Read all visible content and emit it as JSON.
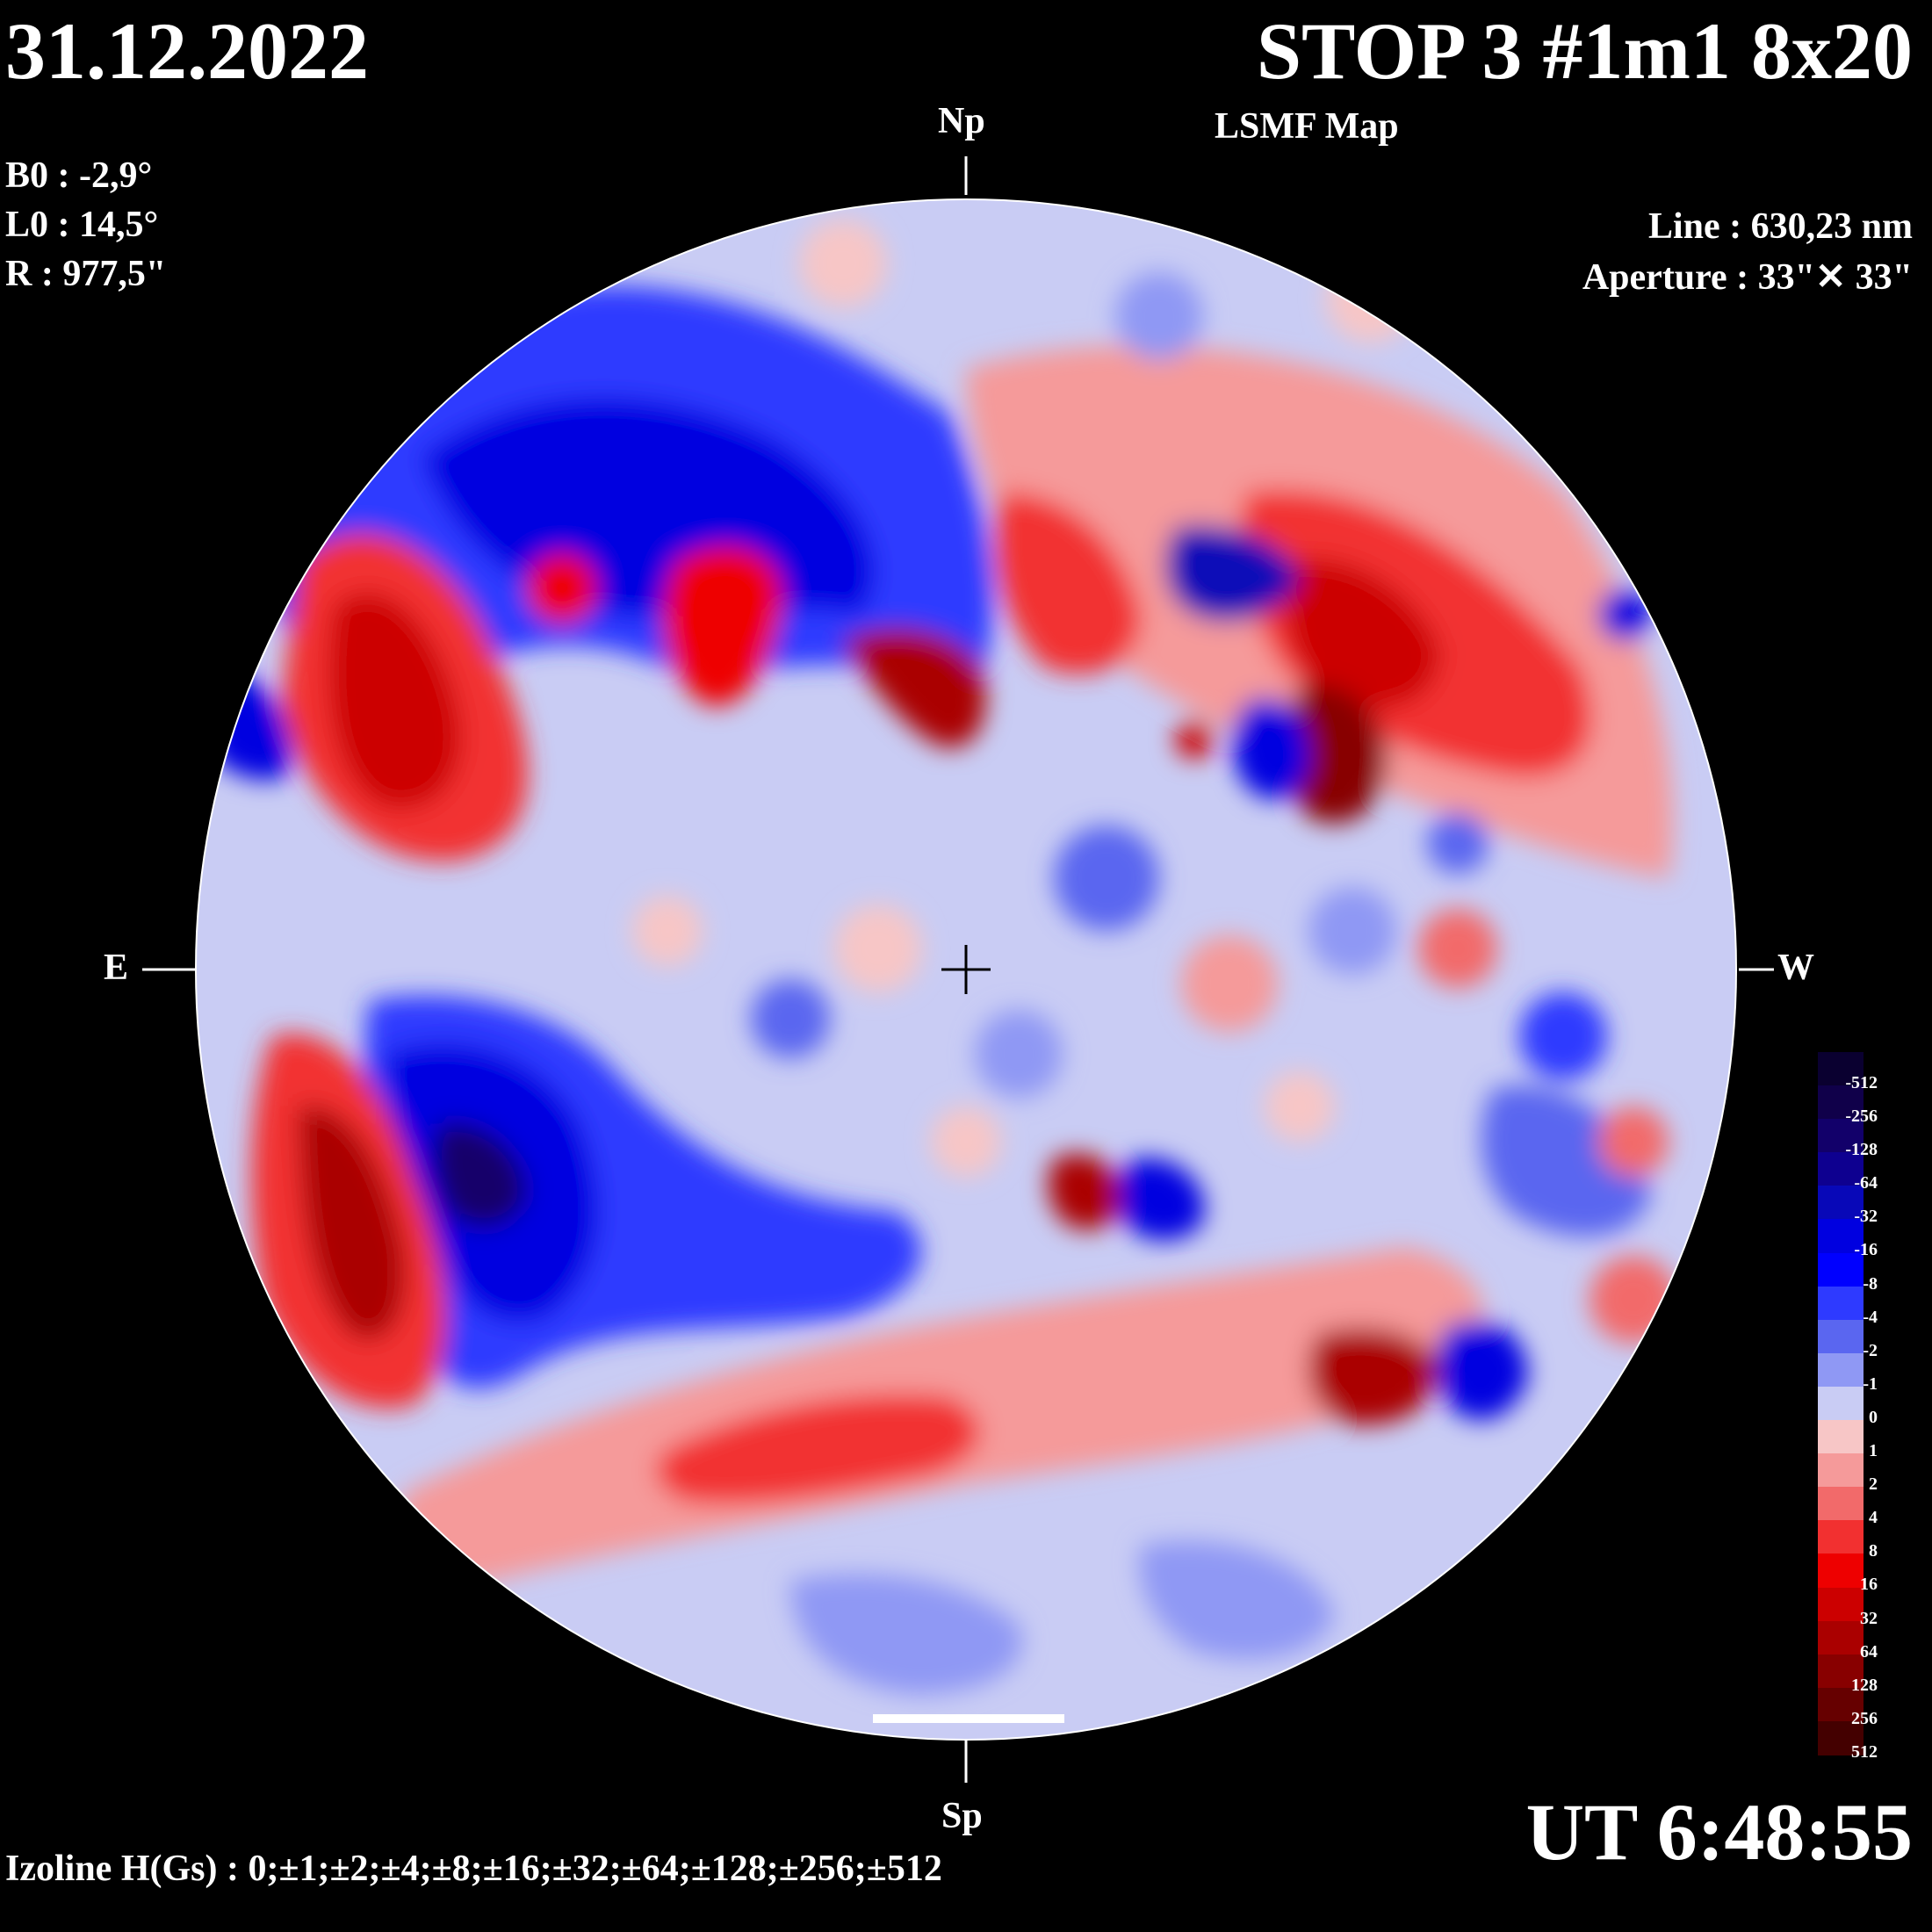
{
  "header": {
    "date": "31.12.2022",
    "title": "STOP 3 #1m1 8x20",
    "map_type": "LSMF  Map"
  },
  "params": {
    "b0": "B0 : -2,9°",
    "l0": "L0 : 14,5°",
    "r": "R  : 977,5\""
  },
  "instrument": {
    "line": "Line :  630,23 nm",
    "aperture": "Aperture : 33\"✕ 33\""
  },
  "directions": {
    "north": "Np",
    "south": "Sp",
    "east": "E",
    "west": "W"
  },
  "time": "UT 6:48:55",
  "izoline": "Izoline H(Gs) : 0;±1;±2;±4;±8;±16;±32;±64;±128;±256;±512",
  "legend": {
    "levels": [
      "-512",
      "-256",
      "-128",
      "-64",
      "-32",
      "-16",
      "-8",
      "-4",
      "-2",
      "-1",
      "0",
      "1",
      "2",
      "4",
      "8",
      "16",
      "32",
      "64",
      "128",
      "256",
      "512"
    ],
    "colors": [
      "#0a0030",
      "#10004a",
      "#12006a",
      "#0e0090",
      "#0808b8",
      "#0000e0",
      "#0000ff",
      "#2e3aff",
      "#5a66f0",
      "#8f98f4",
      "#c9ccf4",
      "#f7c6c6",
      "#f59a9a",
      "#f26a6a",
      "#f23030",
      "#ee0000",
      "#cc0000",
      "#aa0000",
      "#880000",
      "#660000",
      "#440000"
    ]
  }
}
